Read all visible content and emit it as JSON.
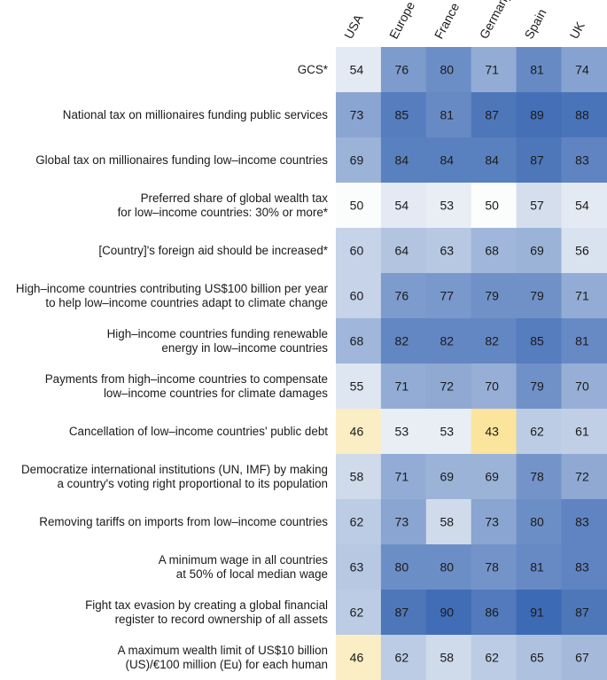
{
  "chart_data": {
    "type": "heatmap",
    "columns": [
      "USA",
      "Europe",
      "France",
      "Germany",
      "Spain",
      "UK"
    ],
    "rows": [
      {
        "label": [
          "GCS*"
        ],
        "values": [
          54,
          76,
          80,
          71,
          81,
          74
        ]
      },
      {
        "label": [
          "National tax on millionaires funding public services"
        ],
        "values": [
          73,
          85,
          81,
          87,
          89,
          88
        ]
      },
      {
        "label": [
          "Global tax on millionaires funding low–income countries"
        ],
        "values": [
          69,
          84,
          84,
          84,
          87,
          83
        ]
      },
      {
        "label": [
          "Preferred share of global wealth tax",
          "for low–income countries: 30% or more*"
        ],
        "values": [
          50,
          54,
          53,
          50,
          57,
          54
        ]
      },
      {
        "label": [
          "[Country]'s foreign aid should be increased*"
        ],
        "values": [
          60,
          64,
          63,
          68,
          69,
          56
        ]
      },
      {
        "label": [
          "High–income countries contributing US$100 billion per year",
          "to help low–income countries adapt to climate change"
        ],
        "values": [
          60,
          76,
          77,
          79,
          79,
          71
        ]
      },
      {
        "label": [
          "High–income countries funding renewable",
          "energy in low–income countries"
        ],
        "values": [
          68,
          82,
          82,
          82,
          85,
          81
        ]
      },
      {
        "label": [
          "Payments from high–income countries to compensate",
          "low–income countries for climate damages"
        ],
        "values": [
          55,
          71,
          72,
          70,
          79,
          70
        ]
      },
      {
        "label": [
          "Cancellation of low–income countries' public debt"
        ],
        "values": [
          46,
          53,
          53,
          43,
          62,
          61
        ]
      },
      {
        "label": [
          "Democratize international institutions (UN, IMF) by making",
          "a country's voting right proportional to its population"
        ],
        "values": [
          58,
          71,
          69,
          69,
          78,
          72
        ]
      },
      {
        "label": [
          "Removing tariffs on imports from low–income countries"
        ],
        "values": [
          62,
          73,
          58,
          73,
          80,
          83
        ]
      },
      {
        "label": [
          "A minimum wage in all countries",
          "at 50% of local median wage"
        ],
        "values": [
          63,
          80,
          80,
          78,
          81,
          83
        ]
      },
      {
        "label": [
          "Fight tax evasion by creating a global financial",
          "register to record ownership of all assets"
        ],
        "values": [
          62,
          87,
          90,
          86,
          91,
          87
        ]
      },
      {
        "label": [
          "A maximum wealth limit of US$10 billion",
          "(US)/€100 million (Eu) for each human"
        ],
        "values": [
          46,
          62,
          58,
          62,
          65,
          67
        ]
      }
    ],
    "color_scale": {
      "low_value": 43,
      "mid_value": 50,
      "high_value": 91,
      "low_color": "#fbe49c",
      "mid_color": "#fbfcfc",
      "high_color": "#3d6ab4"
    }
  }
}
